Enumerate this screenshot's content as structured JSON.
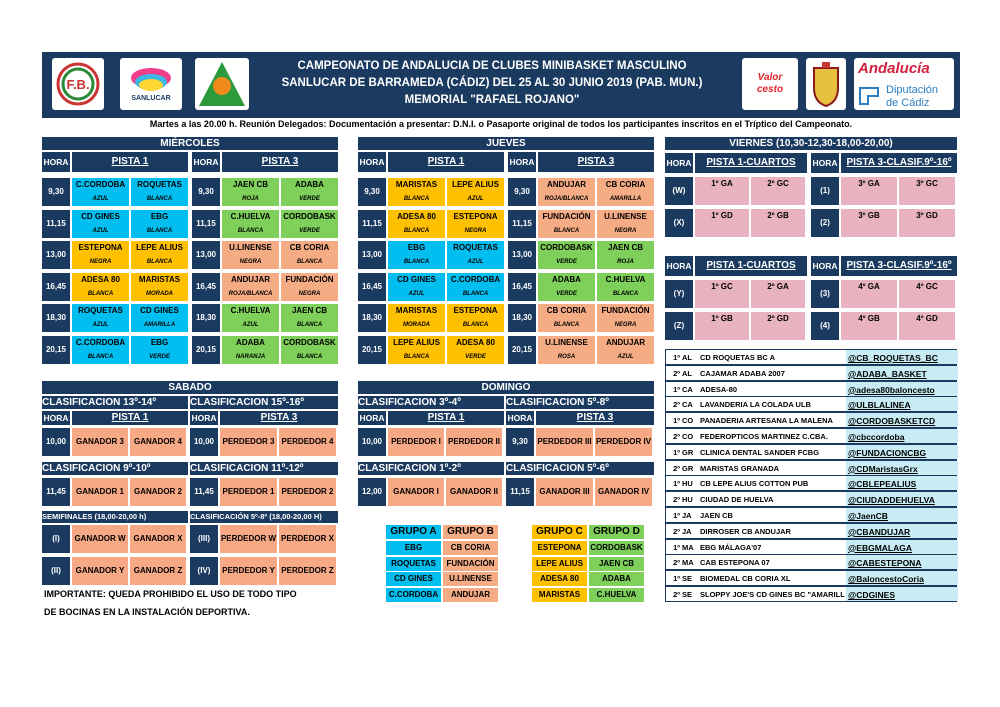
{
  "header": {
    "line1": "CAMPEONATO DE ANDALUCIA DE CLUBES MINIBASKET MASCULINO",
    "line2": "SANLUCAR DE BARRAMEDA (CÁDIZ) DEL 25 AL 30 JUNIO 2019 (PAB. MUN.)",
    "line3": "MEMORIAL \"RAFAEL ROJANO\"",
    "logo_valor": "Valor cesto",
    "logo_andalucia": "Andalucía",
    "logo_diputacion1": "Diputación",
    "logo_diputacion2": "de Cádiz",
    "logo_sanlucar": "SANLUCAR"
  },
  "notice": "Martes a las 20.00 h. Reunión Delegados: Documentación a presentar: D.N.I. o Pasaporte original de todos los participantes inscritos en el Tríptico del Campeonato.",
  "labels": {
    "hora": "HORA",
    "pista1": "PISTA 1",
    "pista3": "PISTA 3"
  },
  "miercoles": {
    "title": "MIÉRCOLES",
    "rows": [
      {
        "hora": "9,30",
        "p1": [
          [
            "C.CORDOBA",
            "ROQUETAS"
          ],
          [
            "AZUL",
            "BLANCA"
          ]
        ],
        "p3": [
          [
            "JAEN CB",
            "ADABA"
          ],
          [
            "ROJA",
            "VERDE"
          ]
        ]
      },
      {
        "hora": "11,15",
        "p1": [
          [
            "CD GINES",
            "EBG"
          ],
          [
            "AZUL",
            "BLANCA"
          ]
        ],
        "p3": [
          [
            "C.HUELVA",
            "CORDOBASK"
          ],
          [
            "BLANCA",
            "VERDE"
          ]
        ]
      },
      {
        "hora": "13,00",
        "p1": [
          [
            "ESTEPONA",
            "LEPE ALIUS"
          ],
          [
            "NEGRA",
            "BLANCA"
          ]
        ],
        "p3": [
          [
            "U.LINENSE",
            "CB CORIA"
          ],
          [
            "NEGRA",
            "BLANCA"
          ]
        ]
      },
      {
        "hora": "16,45",
        "p1": [
          [
            "ADESA 80",
            "MARISTAS"
          ],
          [
            "BLANCA",
            "MORADA"
          ]
        ],
        "p3": [
          [
            "ANDUJAR",
            "FUNDACIÓN"
          ],
          [
            "ROJA/BLANCA",
            "NEGRA"
          ]
        ]
      },
      {
        "hora": "18,30",
        "p1": [
          [
            "ROQUETAS",
            "CD GINES"
          ],
          [
            "AZUL",
            "AMARILLA"
          ]
        ],
        "p3": [
          [
            "C.HUELVA",
            "JAEN CB"
          ],
          [
            "AZUL",
            "BLANCA"
          ]
        ]
      },
      {
        "hora": "20,15",
        "p1": [
          [
            "C.CORDOBA",
            "EBG"
          ],
          [
            "BLANCA",
            "VERDE"
          ]
        ],
        "p3": [
          [
            "ADABA",
            "CORDOBASK"
          ],
          [
            "NARANJA",
            "BLANCA"
          ]
        ]
      }
    ]
  },
  "jueves": {
    "title": "JUEVES",
    "rows": [
      {
        "hora": "9,30",
        "p1": [
          [
            "MARISTAS",
            "LEPE ALIUS"
          ],
          [
            "BLANCA",
            "AZUL"
          ]
        ],
        "p3": [
          [
            "ANDUJAR",
            "CB CORIA"
          ],
          [
            "ROJA/BLANCA",
            "AMARILLA"
          ]
        ]
      },
      {
        "hora": "11,15",
        "p1": [
          [
            "ADESA 80",
            "ESTEPONA"
          ],
          [
            "BLANCA",
            "NEGRA"
          ]
        ],
        "p3": [
          [
            "FUNDACIÓN",
            "U.LINENSE"
          ],
          [
            "BLANCA",
            "NEGRA"
          ]
        ]
      },
      {
        "hora": "13,00",
        "p1": [
          [
            "EBG",
            "ROQUETAS"
          ],
          [
            "BLANCA",
            "AZUL"
          ]
        ],
        "p3": [
          [
            "CORDOBASK",
            "JAEN CB"
          ],
          [
            "VERDE",
            "ROJA"
          ]
        ]
      },
      {
        "hora": "16,45",
        "p1": [
          [
            "CD GINES",
            "C.CORDOBA"
          ],
          [
            "AZUL",
            "BLANCA"
          ]
        ],
        "p3": [
          [
            "ADABA",
            "C.HUELVA"
          ],
          [
            "VERDE",
            "BLANCA"
          ]
        ]
      },
      {
        "hora": "18,30",
        "p1": [
          [
            "MARISTAS",
            "ESTEPONA"
          ],
          [
            "MORADA",
            "BLANCA"
          ]
        ],
        "p3": [
          [
            "CB CORIA",
            "FUNDACIÓN"
          ],
          [
            "BLANCA",
            "NEGRA"
          ]
        ]
      },
      {
        "hora": "20,15",
        "p1": [
          [
            "LEPE ALIUS",
            "ADESA 80"
          ],
          [
            "BLANCA",
            "VERDE"
          ]
        ],
        "p3": [
          [
            "U.LINENSE",
            "ANDUJAR"
          ],
          [
            "ROSA",
            "AZUL"
          ]
        ]
      }
    ]
  },
  "viernes": {
    "title": "VIERNES (10,30-12,30-18,00-20,00)",
    "p1_title": "PISTA 1-CUARTOS",
    "p3_title": "PISTA 3-CLASIF.9º-16º",
    "block1": [
      {
        "l1": "(W)",
        "p1": [
          "1º GA",
          "2º GC"
        ],
        "l3": "(1)",
        "p3": [
          "3º GA",
          "3º GC"
        ]
      },
      {
        "l1": "(X)",
        "p1": [
          "1º GD",
          "2º GB"
        ],
        "l3": "(2)",
        "p3": [
          "3º GB",
          "3º GD"
        ]
      }
    ],
    "block2": [
      {
        "l1": "(Y)",
        "p1": [
          "1º GC",
          "2º GA"
        ],
        "l3": "(3)",
        "p3": [
          "4º GA",
          "4º GC"
        ]
      },
      {
        "l1": "(Z)",
        "p1": [
          "1º GB",
          "2º GD"
        ],
        "l3": "(4)",
        "p3": [
          "4º GB",
          "4º GD"
        ]
      }
    ]
  },
  "sabado": {
    "title": "SABADO",
    "c1": "CLASIFICACION  13º-14º",
    "c2": "CLASIFICACION  15º-16º",
    "r1": {
      "h1": "10,00",
      "a": [
        "GANADOR 3",
        "GANADOR 4"
      ],
      "h3": "10,00",
      "b": [
        "PERDEDOR 3",
        "PERDEDOR 4"
      ]
    },
    "c3": "CLASIFICACION  9º-10º",
    "c4": "CLASIFICACION  11º-12º",
    "r2": {
      "h1": "11,45",
      "a": [
        "GANADOR 1",
        "GANADOR 2"
      ],
      "h3": "11,45",
      "b": [
        "PERDEDOR 1",
        "PERDEDOR 2"
      ]
    },
    "semis": "SEMIFINALES  (18,00-20,00 h)",
    "semis2": "CLASIFICACIÓN 5º-8º (18,00-20,00 H)",
    "s1": {
      "l1": "(I)",
      "a": [
        "GANADOR W",
        "GANADOR X"
      ],
      "l3": "(III)",
      "b": [
        "PERDEDOR W",
        "PERDEDOR X"
      ]
    },
    "s2": {
      "l1": "(II)",
      "a": [
        "GANADOR Y",
        "GANADOR Z"
      ],
      "l3": "(IV)",
      "b": [
        "PERDEDOR Y",
        "PERDEDOR Z"
      ]
    }
  },
  "domingo": {
    "title": "DOMINGO",
    "c1": "CLASIFICACION  3º-4º",
    "c2": "CLASIFICACION  5º-8º",
    "r1": {
      "h1": "10,00",
      "a": [
        "PERDEDOR I",
        "PERDEDOR II"
      ],
      "h3": "9,30",
      "b": [
        "PERDEDOR III",
        "PERDEDOR IV"
      ]
    },
    "c3": "CLASIFICACION  1º-2º",
    "c4": "CLASIFICACION  5º-6º",
    "r2": {
      "h1": "12,00",
      "a": [
        "GANADOR I",
        "GANADOR II"
      ],
      "h3": "11,15",
      "b": [
        "GANADOR III",
        "GANADOR IV"
      ]
    }
  },
  "groups": [
    {
      "name": "GRUPO A",
      "teams": [
        "EBG",
        "ROQUETAS",
        "CD GINES",
        "C.CORDOBA"
      ]
    },
    {
      "name": "GRUPO B",
      "teams": [
        "CB CORIA",
        "FUNDACIÓN",
        "U.LINENSE",
        "ANDUJAR"
      ]
    },
    {
      "name": "GRUPO C",
      "teams": [
        "ESTEPONA",
        "LEPE ALIUS",
        "ADESA 80",
        "MARISTAS"
      ]
    },
    {
      "name": "GRUPO D",
      "teams": [
        "CORDOBASK",
        "JAEN CB",
        "ADABA",
        "C.HUELVA"
      ]
    }
  ],
  "ranking": [
    {
      "pos": "1º",
      "prov": "AL",
      "club": "CD ROQUETAS BC A",
      "tw": "@CB_ROQUETAS_BC"
    },
    {
      "pos": "2º",
      "prov": "AL",
      "club": "CAJAMAR ADABA 2007",
      "tw": "@ADABA_BASKET"
    },
    {
      "pos": "1º",
      "prov": "CA",
      "club": "ADESA-80",
      "tw": "@adesa80baloncesto"
    },
    {
      "pos": "2º",
      "prov": "CA",
      "club": "LAVANDERIA LA COLADA ULB",
      "tw": "@ULBLALINEA"
    },
    {
      "pos": "1º",
      "prov": "CO",
      "club": "PANADERIA ARTESANA LA MALENA",
      "tw": "@CORDOBASKETCD"
    },
    {
      "pos": "2º",
      "prov": "CO",
      "club": "FEDEROPTICOS MARTINEZ C.CBA.",
      "tw": "@cbccordoba"
    },
    {
      "pos": "1º",
      "prov": "GR",
      "club": "CLINICA DENTAL SANDER FCBG",
      "tw": "@FUNDACIONCBG"
    },
    {
      "pos": "2º",
      "prov": "GR",
      "club": "MARISTAS GRANADA",
      "tw": "@CDMaristasGrx"
    },
    {
      "pos": "1º",
      "prov": "HU",
      "club": "CB LEPE ALIUS COTTON PUB",
      "tw": "@CBLEPEALIUS"
    },
    {
      "pos": "2º",
      "prov": "HU",
      "club": "CIUDAD DE HUELVA",
      "tw": "@CIUDADDEHUELVA"
    },
    {
      "pos": "1º",
      "prov": "JA",
      "club": "JAEN CB",
      "tw": "@JaenCB"
    },
    {
      "pos": "2º",
      "prov": "JA",
      "club": "DIRROSER CB ANDUJAR",
      "tw": "@CBANDUJAR"
    },
    {
      "pos": "1º",
      "prov": "MA",
      "club": "EBG MÁLAGA'07",
      "tw": "@EBGMALAGA"
    },
    {
      "pos": "2º",
      "prov": "MA",
      "club": "CAB ESTEPONA 07",
      "tw": "@CABESTEPONA"
    },
    {
      "pos": "1º",
      "prov": "SE",
      "club": "BIOMEDAL CB CORIA XL",
      "tw": "@BaloncestoCoria"
    },
    {
      "pos": "2º",
      "prov": "SE",
      "club": "SLOPPY JOE'S CD GINES BC \"AMARILL",
      "tw": "@CDGINES"
    }
  ],
  "warning1": "IMPORTANTE: QUEDA PROHIBIDO EL USO DE TODO TIPO",
  "warning2": "DE BOCINAS EN LA INSTALACIÓN DEPORTIVA."
}
